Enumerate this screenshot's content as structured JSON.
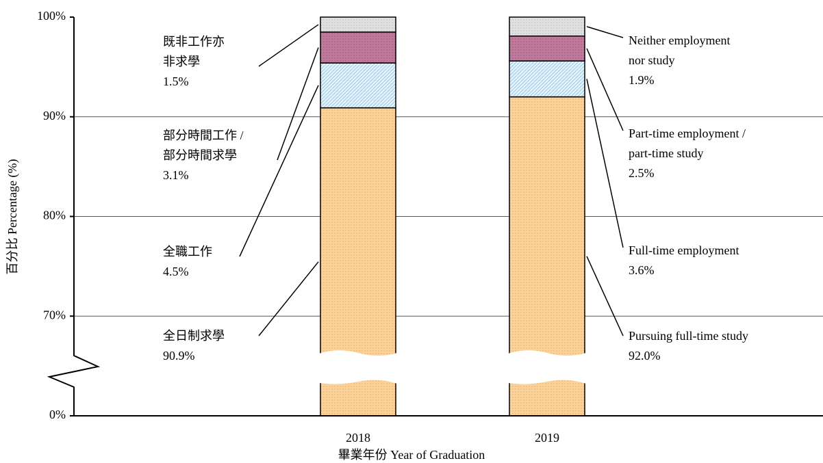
{
  "chart_data": {
    "type": "stacked_bar",
    "categories": [
      "2018",
      "2019"
    ],
    "xlabel": "畢業年份  Year of Graduation",
    "ylabel": "百分比 Percentage (%)",
    "ylim": [
      0,
      100
    ],
    "yticks": [
      {
        "value": 0,
        "label": "0%"
      },
      {
        "value": 70,
        "label": "70%"
      },
      {
        "value": 80,
        "label": "80%"
      },
      {
        "value": 90,
        "label": "90%"
      },
      {
        "value": 100,
        "label": "100%"
      }
    ],
    "y_break": true,
    "grid": true,
    "series": [
      {
        "name": "Pursuing full-time study",
        "label_zh": [
          "全日制求學"
        ],
        "label_en": [
          "Pursuing full-time study"
        ],
        "color": "#fbd39a",
        "values": [
          90.9,
          92.0
        ],
        "value_labels": [
          "90.9%",
          "92.0%"
        ]
      },
      {
        "name": "Full-time employment",
        "label_zh": [
          "全職工作"
        ],
        "label_en": [
          "Full-time employment"
        ],
        "color": "#d6ecf8",
        "values": [
          4.5,
          3.6
        ],
        "value_labels": [
          "4.5%",
          "3.6%"
        ]
      },
      {
        "name": "Part-time employment / part-time study",
        "label_zh": [
          "部分時間工作 /",
          "部分時間求學"
        ],
        "label_en": [
          "Part-time employment /",
          "part-time study"
        ],
        "color": "#bf7a9c",
        "values": [
          3.1,
          2.5
        ],
        "value_labels": [
          "3.1%",
          "2.5%"
        ]
      },
      {
        "name": "Neither employment nor study",
        "label_zh": [
          "既非工作亦",
          "非求學"
        ],
        "label_en": [
          "Neither employment",
          "nor study"
        ],
        "color": "#d9d9d9",
        "values": [
          1.5,
          1.9
        ],
        "value_labels": [
          "1.5%",
          "1.9%"
        ]
      }
    ]
  }
}
